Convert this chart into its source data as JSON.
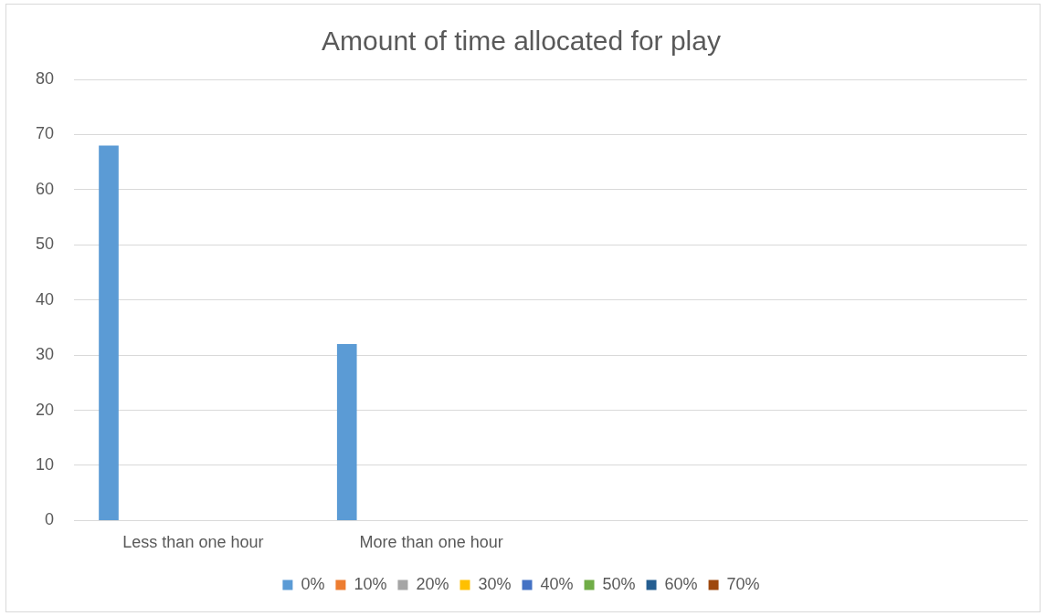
{
  "chart_data": {
    "type": "bar",
    "title": "Amount of time allocated for play",
    "categories": [
      "Less than one hour",
      "More than one hour",
      null,
      null
    ],
    "series": [
      {
        "name": "0%",
        "color": "#5b9bd5",
        "values": [
          68,
          32,
          null,
          null
        ]
      },
      {
        "name": "10%",
        "color": "#ed7d31",
        "values": [
          null,
          null,
          null,
          null
        ]
      },
      {
        "name": "20%",
        "color": "#a5a5a5",
        "values": [
          null,
          null,
          null,
          null
        ]
      },
      {
        "name": "30%",
        "color": "#ffc000",
        "values": [
          null,
          null,
          null,
          null
        ]
      },
      {
        "name": "40%",
        "color": "#4472c4",
        "values": [
          null,
          null,
          null,
          null
        ]
      },
      {
        "name": "50%",
        "color": "#70ad47",
        "values": [
          null,
          null,
          null,
          null
        ]
      },
      {
        "name": "60%",
        "color": "#255e91",
        "values": [
          null,
          null,
          null,
          null
        ]
      },
      {
        "name": "70%",
        "color": "#9e480e",
        "values": [
          null,
          null,
          null,
          null
        ]
      }
    ],
    "ylim": [
      0,
      80
    ],
    "yticks": [
      0,
      10,
      20,
      30,
      40,
      50,
      60,
      70,
      80
    ],
    "grid": "y",
    "legend": "bottom"
  }
}
